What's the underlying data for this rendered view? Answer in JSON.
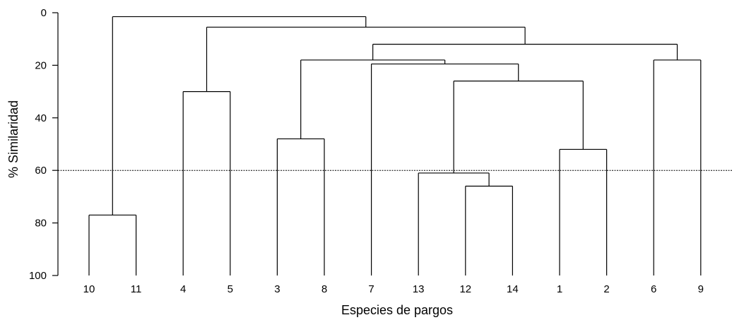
{
  "chart_data": {
    "type": "dendrogram",
    "xlabel": "Especies de pargos",
    "ylabel": "% Similaridad",
    "ylim": [
      0,
      100
    ],
    "yticks": [
      "0",
      "20",
      "40",
      "60",
      "80",
      "100"
    ],
    "leaves": [
      "10",
      "11",
      "4",
      "5",
      "3",
      "8",
      "7",
      "13",
      "12",
      "14",
      "1",
      "2",
      "6",
      "9"
    ],
    "cut_line": 60,
    "merges": [
      {
        "children": [
          "12",
          "14"
        ],
        "similarity": 66
      },
      {
        "children": [
          "1",
          "2"
        ],
        "similarity": 52
      },
      {
        "children": [
          "3",
          "8"
        ],
        "similarity": 48
      },
      {
        "children": [
          "4",
          "5"
        ],
        "similarity": 30
      },
      {
        "children": [
          "10",
          "11"
        ],
        "similarity": 77
      },
      {
        "children": [
          "6",
          "9"
        ],
        "similarity": 18
      },
      {
        "children": [
          "13",
          "(12,14)"
        ],
        "similarity": 61
      },
      {
        "children": [
          "(13,12,14)",
          "(1,2)"
        ],
        "similarity": 26
      },
      {
        "children": [
          "7",
          "(13,12,14,1,2)"
        ],
        "similarity": 19.5
      },
      {
        "children": [
          "(3,8)",
          "(7,13,12,14,1,2)"
        ],
        "similarity": 18
      },
      {
        "children": [
          "(3,8,7,13,12,14,1,2)",
          "(6,9)"
        ],
        "similarity": 12
      },
      {
        "children": [
          "(4,5)",
          "(3,8,7,13,12,14,1,2,6,9)"
        ],
        "similarity": 5.5
      },
      {
        "children": [
          "(10,11)",
          "(4,5,3,8,7,13,12,14,1,2,6,9)"
        ],
        "similarity": 1.5
      }
    ]
  }
}
